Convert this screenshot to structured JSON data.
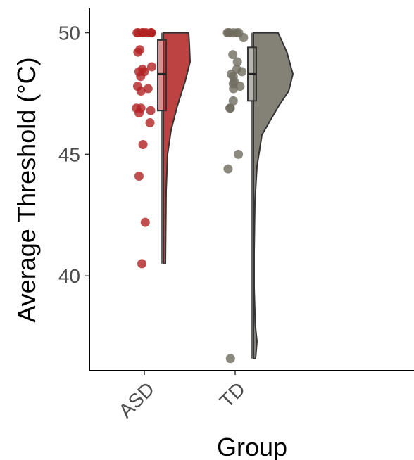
{
  "chart_data": {
    "type": "raincloud",
    "xlabel": "Group",
    "ylabel": "Average Threshold (°C)",
    "ylim": [
      36.1,
      51.0
    ],
    "yticks": [
      40,
      45,
      50
    ],
    "categories": [
      "ASD",
      "TD"
    ],
    "grid": false,
    "legend": "none",
    "series": [
      {
        "name": "ASD",
        "color": "#b22222",
        "points": [
          50.0,
          50.0,
          50.0,
          50.0,
          50.0,
          50.0,
          50.0,
          50.0,
          50.0,
          49.3,
          49.2,
          48.6,
          48.5,
          48.4,
          48.4,
          48.2,
          47.8,
          47.7,
          47.6,
          46.9,
          46.9,
          46.8,
          46.7,
          46.3,
          45.4,
          44.1,
          42.2,
          40.5
        ],
        "box": {
          "q1": 46.8,
          "median": 48.3,
          "q3": 49.7,
          "whisker_low": 40.5,
          "whisker_high": 50.0
        },
        "density": [
          [
            40.5,
            0.06
          ],
          [
            42.0,
            0.07
          ],
          [
            43.5,
            0.08
          ],
          [
            45.0,
            0.12
          ],
          [
            46.0,
            0.22
          ],
          [
            47.0,
            0.4
          ],
          [
            48.0,
            0.62
          ],
          [
            48.8,
            0.76
          ],
          [
            49.5,
            0.74
          ],
          [
            50.0,
            0.72
          ]
        ]
      },
      {
        "name": "TD",
        "color": "#6f6b5f",
        "points": [
          50.0,
          50.0,
          50.0,
          50.0,
          50.0,
          50.0,
          49.8,
          49.1,
          48.8,
          48.5,
          48.4,
          48.3,
          48.2,
          48.0,
          47.9,
          47.8,
          47.7,
          47.2,
          46.9,
          46.9,
          45.0,
          44.4,
          36.6
        ],
        "box": {
          "q1": 47.2,
          "median": 48.3,
          "q3": 49.4,
          "whisker_low": 36.6,
          "whisker_high": 50.0
        },
        "density": [
          [
            36.6,
            0.06
          ],
          [
            37.3,
            0.1
          ],
          [
            38.0,
            0.05
          ],
          [
            39.5,
            0.02
          ],
          [
            41.0,
            0.02
          ],
          [
            43.0,
            0.04
          ],
          [
            44.5,
            0.1
          ],
          [
            45.8,
            0.24
          ],
          [
            47.0,
            0.72
          ],
          [
            47.6,
            1.0
          ],
          [
            48.3,
            1.12
          ],
          [
            49.2,
            0.95
          ],
          [
            50.0,
            0.7
          ]
        ]
      }
    ]
  }
}
